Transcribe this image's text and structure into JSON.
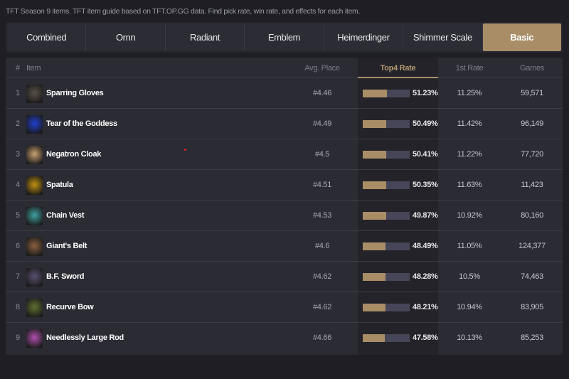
{
  "description": "TFT Season 9 items. TFT item guide based on TFT.OP.GG data. Find pick rate, win rate, and effects for each item.",
  "tabs": [
    {
      "label": "Combined"
    },
    {
      "label": "Ornn"
    },
    {
      "label": "Radiant"
    },
    {
      "label": "Emblem"
    },
    {
      "label": "Heimerdinger"
    },
    {
      "label": "Shimmer Scale"
    },
    {
      "label": "Basic",
      "active": true
    }
  ],
  "colors": {
    "accent": "#a88d67",
    "bar_track": "#464658",
    "background": "#1e1e24"
  },
  "table": {
    "headers": {
      "rank": "#",
      "item": "Item",
      "avg": "Avg. Place",
      "top4": "Top4 Rate",
      "first": "1st Rate",
      "games": "Games"
    },
    "rows": [
      {
        "rank": "1",
        "name": "Sparring Gloves",
        "avg": "#4.46",
        "top4": "51.23%",
        "top4_value": 51.23,
        "first": "11.25%",
        "games": "59,571",
        "icon": "sparring-gloves-icon",
        "icon_color": "#5a5048"
      },
      {
        "rank": "2",
        "name": "Tear of the Goddess",
        "avg": "#4.49",
        "top4": "50.49%",
        "top4_value": 50.49,
        "first": "11.42%",
        "games": "96,149",
        "icon": "tear-icon",
        "icon_color": "#2040d0"
      },
      {
        "rank": "3",
        "name": "Negatron Cloak",
        "avg": "#4.5",
        "top4": "50.41%",
        "top4_value": 50.41,
        "first": "11.22%",
        "games": "77,720",
        "icon": "negatron-cloak-icon",
        "icon_color": "#c8a070"
      },
      {
        "rank": "4",
        "name": "Spatula",
        "avg": "#4.51",
        "top4": "50.35%",
        "top4_value": 50.35,
        "first": "11.63%",
        "games": "11,423",
        "icon": "spatula-icon",
        "icon_color": "#c09010"
      },
      {
        "rank": "5",
        "name": "Chain Vest",
        "avg": "#4.53",
        "top4": "49.87%",
        "top4_value": 49.87,
        "first": "10.92%",
        "games": "80,160",
        "icon": "chain-vest-icon",
        "icon_color": "#40a0a0"
      },
      {
        "rank": "6",
        "name": "Giant's Belt",
        "avg": "#4.6",
        "top4": "48.49%",
        "top4_value": 48.49,
        "first": "11.05%",
        "games": "124,377",
        "icon": "giants-belt-icon",
        "icon_color": "#8a6040"
      },
      {
        "rank": "7",
        "name": "B.F. Sword",
        "avg": "#4.62",
        "top4": "48.28%",
        "top4_value": 48.28,
        "first": "10.5%",
        "games": "74,463",
        "icon": "bf-sword-icon",
        "icon_color": "#5a5070"
      },
      {
        "rank": "8",
        "name": "Recurve Bow",
        "avg": "#4.62",
        "top4": "48.21%",
        "top4_value": 48.21,
        "first": "10.94%",
        "games": "83,905",
        "icon": "recurve-bow-icon",
        "icon_color": "#607030"
      },
      {
        "rank": "9",
        "name": "Needlessly Large Rod",
        "avg": "#4.66",
        "top4": "47.58%",
        "top4_value": 47.58,
        "first": "10.13%",
        "games": "85,253",
        "icon": "large-rod-icon",
        "icon_color": "#b050b0"
      }
    ]
  }
}
